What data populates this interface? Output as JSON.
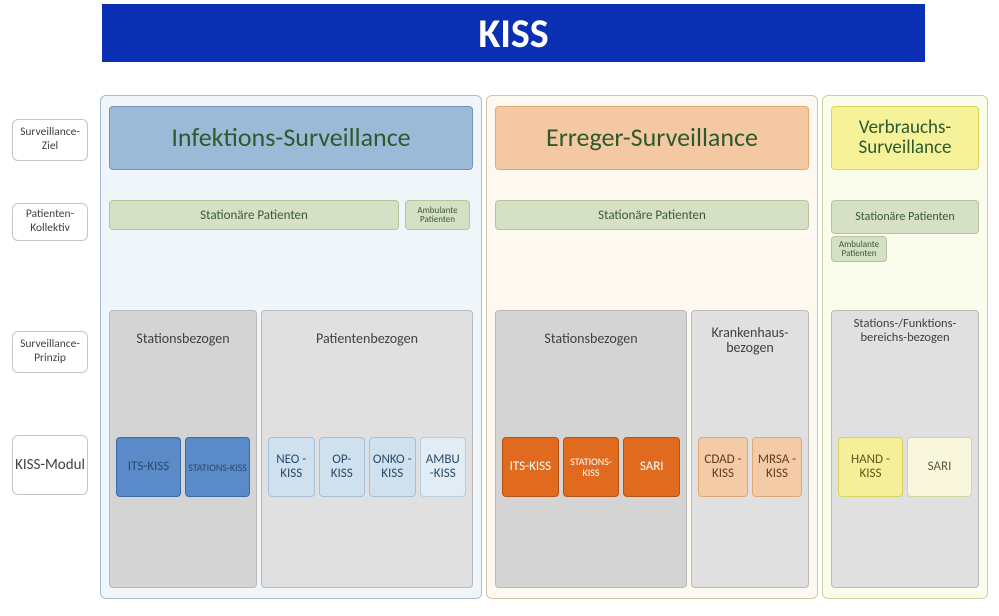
{
  "colors": {
    "header_bg": "#0a2fb2",
    "header_text": "#ffffff",
    "col1_bg": "#f0f5fa",
    "col1_border": "#a9bdd2",
    "col1_title_bg": "#9db9d8",
    "col1_title_border": "#6f94bd",
    "col2_bg": "#fdf8f0",
    "col2_border": "#d6c4a6",
    "col2_title_bg": "#f4c8a2",
    "col2_title_border": "#e0a873",
    "col3_bg": "#fbfdec",
    "col3_border": "#cdd39e",
    "col3_title_bg": "#f5f29a",
    "col3_title_border": "#d8d55e",
    "pat_bg": "#d6e0c4",
    "pat_border": "#b6c49a",
    "principle_bg": "#d4d4d4",
    "principle_bg_light": "#e0e0e0",
    "mod_blue_bg": "#5a8ac8",
    "mod_blue_border": "#3a6aa8",
    "mod_lightblue_bg": "#cfe0ef",
    "mod_lightblue_border": "#a7c0da",
    "mod_paleblue_bg": "#e2ecf4",
    "mod_paleblue_border": "#b9ccde",
    "mod_orange_bg": "#e06b1f",
    "mod_orange_border": "#b8520f",
    "mod_peach_bg": "#f4cba7",
    "mod_peach_border": "#e0a873",
    "mod_yellow_bg": "#f5ef9a",
    "mod_yellow_border": "#d8d25e",
    "mod_cream_bg": "#f8f6dc",
    "mod_cream_border": "#d8d4a0",
    "text_dark": "#2d4a2d",
    "text_blue": "#2a4a6a"
  },
  "header": "KISS",
  "row_labels": {
    "r1": "Surveillance-Ziel",
    "r2": "Patienten-Kollektiv",
    "r3": "Surveillance-Prinzip",
    "r4": "KISS-Modul"
  },
  "col1": {
    "title": "Infektions-Surveillance",
    "patients": {
      "stat": "Stationäre Patienten",
      "amb": "Ambulante Patienten"
    },
    "principles": [
      {
        "label": "Stationsbezogen",
        "modules": [
          {
            "t": "ITS-KISS",
            "style": "blue"
          },
          {
            "t": "STATIONS-KISS",
            "style": "blue",
            "small": true
          }
        ]
      },
      {
        "label": "Patientenbezogen",
        "modules": [
          {
            "t": "NEO -KISS",
            "style": "lightblue"
          },
          {
            "t": "OP-KISS",
            "style": "lightblue"
          },
          {
            "t": "ONKO -KISS",
            "style": "lightblue"
          },
          {
            "t": "AMBU -KISS",
            "style": "paleblue"
          }
        ]
      }
    ]
  },
  "col2": {
    "title": "Erreger-Surveillance",
    "patients": {
      "stat": "Stationäre Patienten"
    },
    "principles": [
      {
        "label": "Stationsbezogen",
        "modules": [
          {
            "t": "ITS-KISS",
            "style": "orange"
          },
          {
            "t": "STATIONS-KISS",
            "style": "orange",
            "small": true
          },
          {
            "t": "SARI",
            "style": "orange"
          }
        ]
      },
      {
        "label": "Krankenhaus-bezogen",
        "modules": [
          {
            "t": "CDAD -KISS",
            "style": "peach"
          },
          {
            "t": "MRSA -KISS",
            "style": "peach"
          }
        ]
      }
    ]
  },
  "col3": {
    "title": "Verbrauchs-Surveillance",
    "patients": {
      "stat": "Stationäre Patienten",
      "amb": "Ambulante Patienten"
    },
    "principles": [
      {
        "label": "Stations-/Funktions-bereichs-bezogen",
        "modules": [
          {
            "t": "HAND -KISS",
            "style": "yellow"
          },
          {
            "t": "SARI",
            "style": "cream"
          }
        ]
      }
    ]
  }
}
